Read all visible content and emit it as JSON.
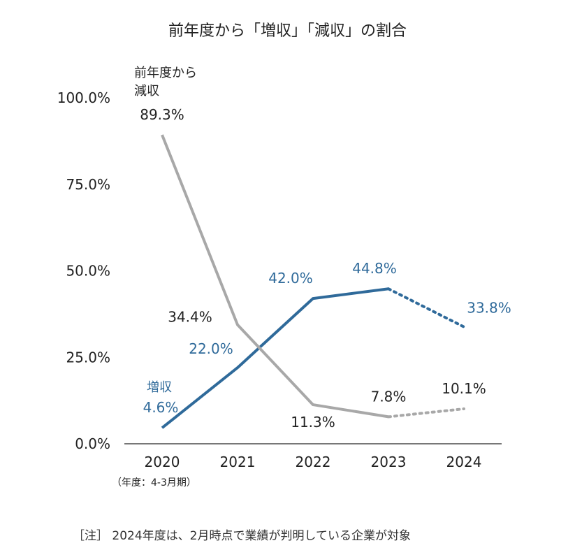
{
  "title": "前年度から「増収」「減収」の割合",
  "year_note": "（年度：4-3月期）",
  "footnote": "［注］ 2024年度は、2月時点で業績が判明している企業が対象",
  "colors": {
    "increase": "#2f6a9a",
    "decrease": "#a8a8a8",
    "axis": "#777777",
    "dark_text": "#222222"
  },
  "chart_data": {
    "type": "line",
    "x": [
      "2020",
      "2021",
      "2022",
      "2023",
      "2024"
    ],
    "ylim": [
      0,
      100
    ],
    "yticks": [
      "0.0%",
      "25.0%",
      "50.0%",
      "75.0%",
      "100.0%"
    ],
    "ytick_values": [
      0,
      25,
      50,
      75,
      100
    ],
    "series": [
      {
        "name": "増収",
        "values": [
          4.6,
          22.0,
          42.0,
          44.8,
          33.8
        ],
        "labels": [
          "4.6%",
          "22.0%",
          "42.0%",
          "44.8%",
          "33.8%"
        ],
        "dotted_from_index": 3
      },
      {
        "name": "前年度から減収",
        "name_lines": [
          "前年度から",
          "減収"
        ],
        "values": [
          89.3,
          34.4,
          11.3,
          7.8,
          10.1
        ],
        "labels": [
          "89.3%",
          "34.4%",
          "11.3%",
          "7.8%",
          "10.1%"
        ],
        "dotted_from_index": 3
      }
    ]
  }
}
